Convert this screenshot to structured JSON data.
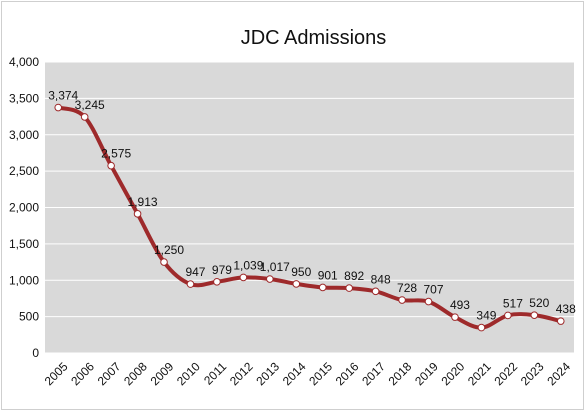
{
  "chart_data": {
    "type": "line",
    "title": "JDC Admissions",
    "xlabel": "",
    "ylabel": "",
    "ylim": [
      0,
      4000
    ],
    "yticks": [
      "0",
      "500",
      "1,000",
      "1,500",
      "2,000",
      "2,500",
      "3,000",
      "3,500",
      "4,000"
    ],
    "grid": true,
    "legend": "none",
    "categories": [
      "2005",
      "2006",
      "2007",
      "2008",
      "2009",
      "2010",
      "2011",
      "2012",
      "2013",
      "2014",
      "2015",
      "2016",
      "2017",
      "2018",
      "2019",
      "2020",
      "2021",
      "2022",
      "2023",
      "2024"
    ],
    "series": [
      {
        "values": [
          3374,
          3245,
          2575,
          1913,
          1250,
          947,
          979,
          1039,
          1017,
          950,
          901,
          892,
          848,
          728,
          707,
          493,
          349,
          517,
          520,
          438
        ],
        "labels": [
          "3,374",
          "3,245",
          "2,575",
          "1,913",
          "1,250",
          "947",
          "979",
          "1,039",
          "1,017",
          "950",
          "901",
          "892",
          "848",
          "728",
          "707",
          "493",
          "349",
          "517",
          "520",
          "438"
        ],
        "color": "#9e2a2b"
      }
    ],
    "colors": {
      "plot_bg": "#d9d9d9",
      "grid": "#ffffff",
      "line": "#9e2a2b",
      "marker_fill": "#ffffff"
    }
  }
}
